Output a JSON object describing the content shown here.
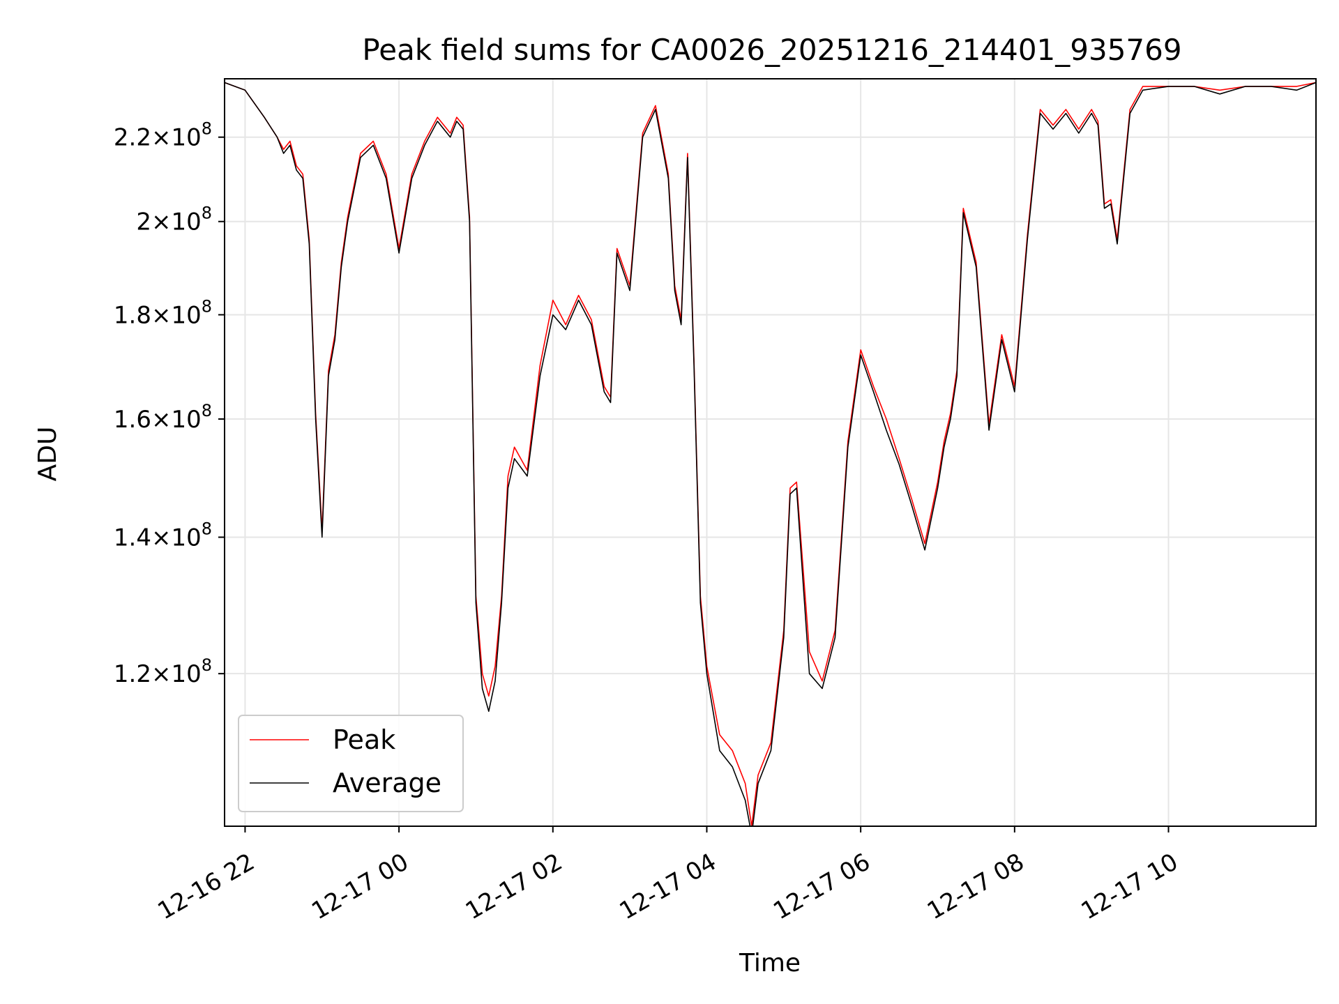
{
  "chart_data": {
    "type": "line",
    "title": "Peak field sums for CA0026_20251216_214401_935769",
    "xlabel": "Time",
    "ylabel": "ADU",
    "y_scale": "log",
    "xlim": [
      "2025-12-16 21:44",
      "2025-12-17 11:55"
    ],
    "ylim": [
      101000000,
      235000000
    ],
    "yticks": [
      {
        "value": 120000000,
        "label": "1.2 × 10^8"
      },
      {
        "value": 140000000,
        "label": "1.4 × 10^8"
      },
      {
        "value": 160000000,
        "label": "1.6 × 10^8"
      },
      {
        "value": 180000000,
        "label": "1.8 × 10^8"
      },
      {
        "value": 200000000,
        "label": "2 × 10^8"
      },
      {
        "value": 220000000,
        "label": "2.2 × 10^8"
      }
    ],
    "xticks": [
      {
        "value": "2025-12-16 22:00",
        "label": "12-16 22"
      },
      {
        "value": "2025-12-17 00:00",
        "label": "12-17 00"
      },
      {
        "value": "2025-12-17 02:00",
        "label": "12-17 02"
      },
      {
        "value": "2025-12-17 04:00",
        "label": "12-17 04"
      },
      {
        "value": "2025-12-17 06:00",
        "label": "12-17 06"
      },
      {
        "value": "2025-12-17 08:00",
        "label": "12-17 08"
      },
      {
        "value": "2025-12-17 10:00",
        "label": "12-17 10"
      }
    ],
    "grid": true,
    "legend_position": "lower-left",
    "series": [
      {
        "name": "Average",
        "color": "#000000",
        "x": [
          "2025-12-16 21:44",
          "2025-12-16 22:00",
          "2025-12-16 22:15",
          "2025-12-16 22:25",
          "2025-12-16 22:30",
          "2025-12-16 22:35",
          "2025-12-16 22:40",
          "2025-12-16 22:45",
          "2025-12-16 22:50",
          "2025-12-16 22:55",
          "2025-12-16 23:00",
          "2025-12-16 23:05",
          "2025-12-16 23:10",
          "2025-12-16 23:15",
          "2025-12-16 23:20",
          "2025-12-16 23:30",
          "2025-12-16 23:40",
          "2025-12-16 23:50",
          "2025-12-17 00:00",
          "2025-12-17 00:10",
          "2025-12-17 00:20",
          "2025-12-17 00:30",
          "2025-12-17 00:40",
          "2025-12-17 00:45",
          "2025-12-17 00:50",
          "2025-12-17 00:55",
          "2025-12-17 01:00",
          "2025-12-17 01:05",
          "2025-12-17 01:10",
          "2025-12-17 01:15",
          "2025-12-17 01:20",
          "2025-12-17 01:25",
          "2025-12-17 01:30",
          "2025-12-17 01:40",
          "2025-12-17 01:50",
          "2025-12-17 02:00",
          "2025-12-17 02:10",
          "2025-12-17 02:20",
          "2025-12-17 02:30",
          "2025-12-17 02:40",
          "2025-12-17 02:45",
          "2025-12-17 02:50",
          "2025-12-17 03:00",
          "2025-12-17 03:10",
          "2025-12-17 03:20",
          "2025-12-17 03:30",
          "2025-12-17 03:35",
          "2025-12-17 03:40",
          "2025-12-17 03:45",
          "2025-12-17 03:50",
          "2025-12-17 03:55",
          "2025-12-17 04:00",
          "2025-12-17 04:10",
          "2025-12-17 04:20",
          "2025-12-17 04:30",
          "2025-12-17 04:35",
          "2025-12-17 04:40",
          "2025-12-17 04:50",
          "2025-12-17 05:00",
          "2025-12-17 05:05",
          "2025-12-17 05:10",
          "2025-12-17 05:20",
          "2025-12-17 05:30",
          "2025-12-17 05:40",
          "2025-12-17 05:50",
          "2025-12-17 06:00",
          "2025-12-17 06:10",
          "2025-12-17 06:20",
          "2025-12-17 06:30",
          "2025-12-17 06:40",
          "2025-12-17 06:50",
          "2025-12-17 07:00",
          "2025-12-17 07:05",
          "2025-12-17 07:10",
          "2025-12-17 07:15",
          "2025-12-17 07:20",
          "2025-12-17 07:30",
          "2025-12-17 07:40",
          "2025-12-17 07:50",
          "2025-12-17 08:00",
          "2025-12-17 08:10",
          "2025-12-17 08:20",
          "2025-12-17 08:30",
          "2025-12-17 08:40",
          "2025-12-17 08:50",
          "2025-12-17 09:00",
          "2025-12-17 09:05",
          "2025-12-17 09:10",
          "2025-12-17 09:15",
          "2025-12-17 09:20",
          "2025-12-17 09:30",
          "2025-12-17 09:40",
          "2025-12-17 10:00",
          "2025-12-17 10:20",
          "2025-12-17 10:40",
          "2025-12-17 11:00",
          "2025-12-17 11:20",
          "2025-12-17 11:40",
          "2025-12-17 11:55"
        ],
        "values": [
          234000000,
          232000000,
          225000000,
          220000000,
          216000000,
          218000000,
          212000000,
          210000000,
          195000000,
          160000000,
          140000000,
          168000000,
          175000000,
          190000000,
          200000000,
          215000000,
          218000000,
          210000000,
          193000000,
          210000000,
          218000000,
          224000000,
          220000000,
          224000000,
          222000000,
          200000000,
          130000000,
          118000000,
          115000000,
          119000000,
          130000000,
          148000000,
          153000000,
          150000000,
          168000000,
          180000000,
          177000000,
          183000000,
          178000000,
          165000000,
          163000000,
          193000000,
          185000000,
          220000000,
          227000000,
          210000000,
          185000000,
          178000000,
          215000000,
          170000000,
          130000000,
          120000000,
          110000000,
          108000000,
          104000000,
          100000000,
          106000000,
          110000000,
          125000000,
          147000000,
          148000000,
          120000000,
          118000000,
          125000000,
          155000000,
          172000000,
          165000000,
          158000000,
          152000000,
          145000000,
          138000000,
          148000000,
          155000000,
          160000000,
          168000000,
          202000000,
          190000000,
          158000000,
          175000000,
          165000000,
          196000000,
          226000000,
          222000000,
          226000000,
          221000000,
          226000000,
          223000000,
          203000000,
          204000000,
          195000000,
          226000000,
          232000000,
          233000000,
          233000000,
          231000000,
          233000000,
          233000000,
          232000000,
          234000000
        ]
      },
      {
        "name": "Peak",
        "color": "#ff0000",
        "x": [
          "2025-12-16 21:44",
          "2025-12-16 22:00",
          "2025-12-16 22:15",
          "2025-12-16 22:25",
          "2025-12-16 22:30",
          "2025-12-16 22:35",
          "2025-12-16 22:40",
          "2025-12-16 22:45",
          "2025-12-16 22:50",
          "2025-12-16 22:55",
          "2025-12-16 23:00",
          "2025-12-16 23:05",
          "2025-12-16 23:10",
          "2025-12-16 23:15",
          "2025-12-16 23:20",
          "2025-12-16 23:30",
          "2025-12-16 23:40",
          "2025-12-16 23:50",
          "2025-12-17 00:00",
          "2025-12-17 00:10",
          "2025-12-17 00:20",
          "2025-12-17 00:30",
          "2025-12-17 00:40",
          "2025-12-17 00:45",
          "2025-12-17 00:50",
          "2025-12-17 00:55",
          "2025-12-17 01:00",
          "2025-12-17 01:05",
          "2025-12-17 01:10",
          "2025-12-17 01:15",
          "2025-12-17 01:20",
          "2025-12-17 01:25",
          "2025-12-17 01:30",
          "2025-12-17 01:40",
          "2025-12-17 01:50",
          "2025-12-17 02:00",
          "2025-12-17 02:10",
          "2025-12-17 02:20",
          "2025-12-17 02:30",
          "2025-12-17 02:40",
          "2025-12-17 02:45",
          "2025-12-17 02:50",
          "2025-12-17 03:00",
          "2025-12-17 03:10",
          "2025-12-17 03:20",
          "2025-12-17 03:30",
          "2025-12-17 03:35",
          "2025-12-17 03:40",
          "2025-12-17 03:45",
          "2025-12-17 03:50",
          "2025-12-17 03:55",
          "2025-12-17 04:00",
          "2025-12-17 04:10",
          "2025-12-17 04:20",
          "2025-12-17 04:30",
          "2025-12-17 04:35",
          "2025-12-17 04:40",
          "2025-12-17 04:50",
          "2025-12-17 05:00",
          "2025-12-17 05:05",
          "2025-12-17 05:10",
          "2025-12-17 05:20",
          "2025-12-17 05:30",
          "2025-12-17 05:40",
          "2025-12-17 05:50",
          "2025-12-17 06:00",
          "2025-12-17 06:10",
          "2025-12-17 06:20",
          "2025-12-17 06:30",
          "2025-12-17 06:40",
          "2025-12-17 06:50",
          "2025-12-17 07:00",
          "2025-12-17 07:05",
          "2025-12-17 07:10",
          "2025-12-17 07:15",
          "2025-12-17 07:20",
          "2025-12-17 07:30",
          "2025-12-17 07:40",
          "2025-12-17 07:50",
          "2025-12-17 08:00",
          "2025-12-17 08:10",
          "2025-12-17 08:20",
          "2025-12-17 08:30",
          "2025-12-17 08:40",
          "2025-12-17 08:50",
          "2025-12-17 09:00",
          "2025-12-17 09:05",
          "2025-12-17 09:10",
          "2025-12-17 09:15",
          "2025-12-17 09:20",
          "2025-12-17 09:30",
          "2025-12-17 09:40",
          "2025-12-17 10:00",
          "2025-12-17 10:20",
          "2025-12-17 10:40",
          "2025-12-17 11:00",
          "2025-12-17 11:20",
          "2025-12-17 11:40",
          "2025-12-17 11:55"
        ],
        "values": [
          234000000,
          232000000,
          225000000,
          220000000,
          217000000,
          219000000,
          213000000,
          211000000,
          196000000,
          161000000,
          141000000,
          169000000,
          176000000,
          191000000,
          201000000,
          216000000,
          219000000,
          211000000,
          194000000,
          211000000,
          219000000,
          225000000,
          221000000,
          225000000,
          223000000,
          201000000,
          131000000,
          120000000,
          117000000,
          121000000,
          131000000,
          150000000,
          155000000,
          151000000,
          170000000,
          183000000,
          178000000,
          184000000,
          179000000,
          166000000,
          164000000,
          194000000,
          186000000,
          221000000,
          228000000,
          211000000,
          186000000,
          179000000,
          216000000,
          171000000,
          131000000,
          121000000,
          112000000,
          110000000,
          106000000,
          101000000,
          107000000,
          111000000,
          126000000,
          148000000,
          149000000,
          123000000,
          119000000,
          126000000,
          156000000,
          173000000,
          166000000,
          160000000,
          153000000,
          146000000,
          139000000,
          149000000,
          156000000,
          161000000,
          169000000,
          203000000,
          191000000,
          159000000,
          176000000,
          166000000,
          197000000,
          227000000,
          223000000,
          227000000,
          222000000,
          227000000,
          224000000,
          204000000,
          205000000,
          196000000,
          227000000,
          233000000,
          233000000,
          233000000,
          232000000,
          233000000,
          233000000,
          233000000,
          234000000
        ]
      }
    ]
  }
}
